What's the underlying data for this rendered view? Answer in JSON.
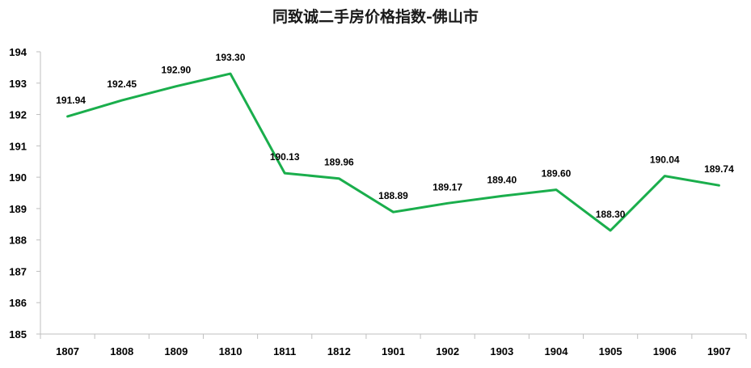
{
  "chart_data": {
    "type": "line",
    "title": "同致诚二手房价格指数-佛山市",
    "xlabel": "",
    "ylabel": "",
    "categories": [
      "1807",
      "1808",
      "1809",
      "1810",
      "1811",
      "1812",
      "1901",
      "1902",
      "1903",
      "1904",
      "1905",
      "1906",
      "1907"
    ],
    "series": [
      {
        "values": [
          191.94,
          192.45,
          192.9,
          193.3,
          190.13,
          189.96,
          188.89,
          189.17,
          189.4,
          189.6,
          188.3,
          190.04,
          189.74
        ],
        "labels": [
          "191.94",
          "192.45",
          "192.90",
          "193.30",
          "190.13",
          "189.96",
          "188.89",
          "189.17",
          "189.40",
          "189.60",
          "188.30",
          "190.04",
          "189.74"
        ],
        "color": "#1aae4c"
      }
    ],
    "ylim": [
      185,
      194
    ],
    "yticks": [
      "185",
      "186",
      "187",
      "188",
      "189",
      "190",
      "191",
      "192",
      "193",
      "194"
    ],
    "grid": false,
    "legend": "none"
  }
}
